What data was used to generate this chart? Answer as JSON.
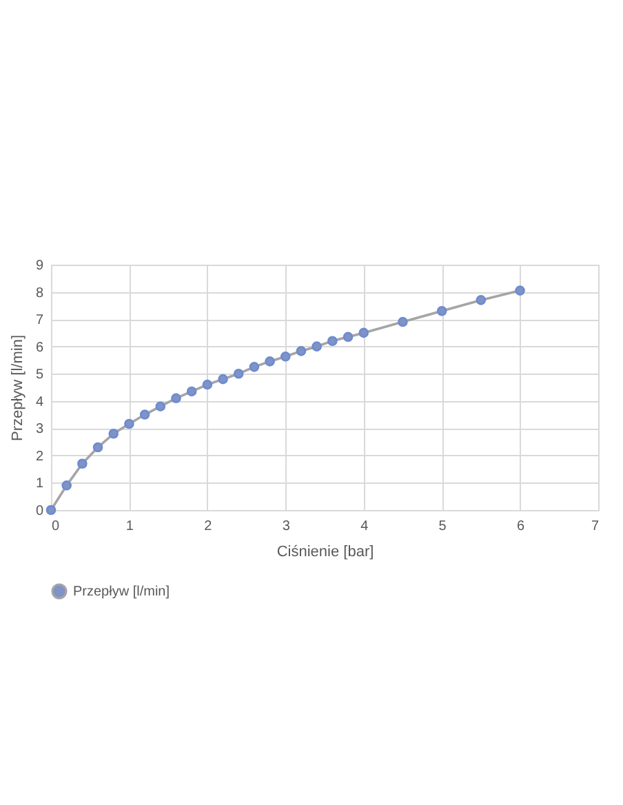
{
  "chart_data": {
    "type": "line",
    "xlabel": "Ciśnienie [bar]",
    "ylabel": "Przepływ [l/min]",
    "x": [
      0,
      0.2,
      0.4,
      0.6,
      0.8,
      1.0,
      1.2,
      1.4,
      1.6,
      1.8,
      2.0,
      2.2,
      2.4,
      2.6,
      2.8,
      3.0,
      3.2,
      3.4,
      3.6,
      3.8,
      4.0,
      4.5,
      5.0,
      5.5,
      6.0
    ],
    "series": [
      {
        "name": "Przepływ [l/min]",
        "color": "#a5a5a5",
        "values": [
          0,
          0.9,
          1.7,
          2.3,
          2.8,
          3.16,
          3.5,
          3.8,
          4.1,
          4.35,
          4.6,
          4.8,
          5.0,
          5.25,
          5.45,
          5.63,
          5.83,
          6.0,
          6.2,
          6.35,
          6.5,
          6.9,
          7.3,
          7.7,
          8.05
        ]
      }
    ],
    "xlim": [
      0,
      7
    ],
    "xticks": [
      0,
      1,
      2,
      3,
      4,
      5,
      6,
      7
    ],
    "ylim": [
      0,
      9
    ],
    "yticks": [
      0,
      1,
      2,
      3,
      4,
      5,
      6,
      7,
      8,
      9
    ],
    "grid": true,
    "legend": "bottom",
    "marker": "circle",
    "line_style": "solid"
  }
}
